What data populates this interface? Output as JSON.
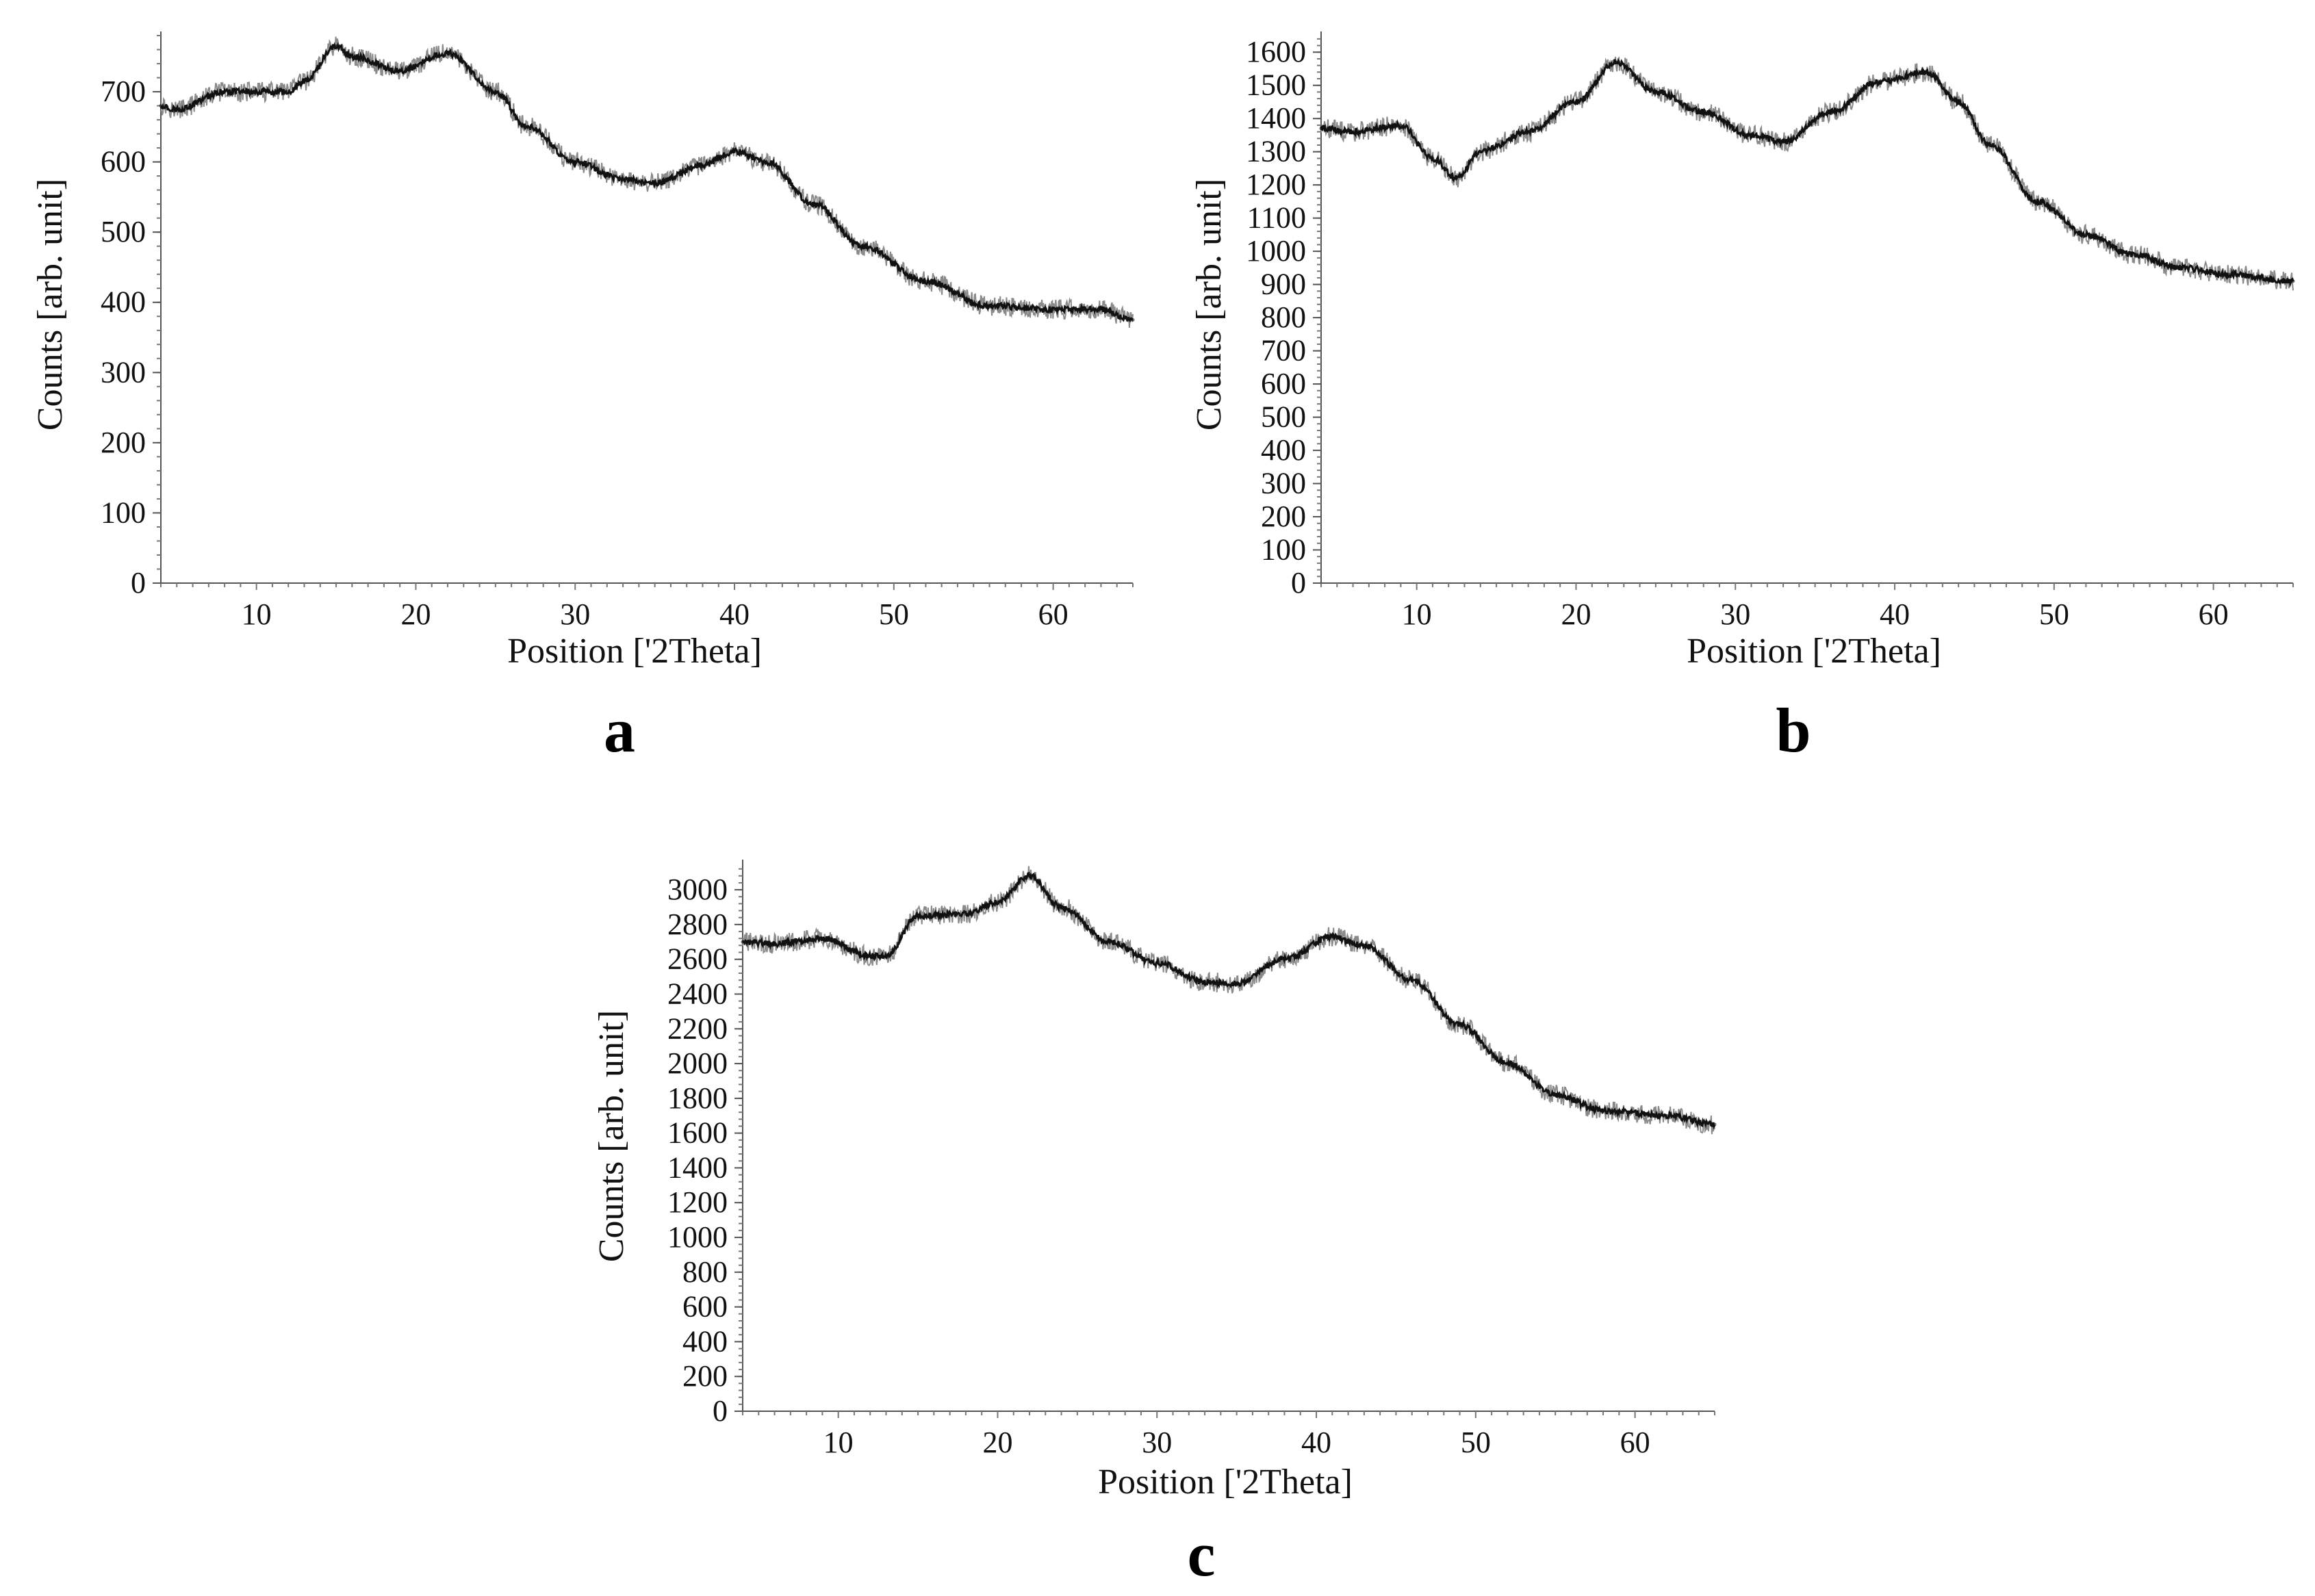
{
  "chart_data": [
    {
      "type": "line",
      "panel_label": "a",
      "title": "",
      "xlabel": "Position ['2Theta]",
      "ylabel": "Counts [arb. unit]",
      "xlim": [
        4,
        65
      ],
      "ylim": [
        0,
        780
      ],
      "xticks": [
        10,
        20,
        30,
        40,
        50,
        60
      ],
      "yticks": [
        0,
        100,
        200,
        300,
        400,
        500,
        600,
        700
      ],
      "grid": false,
      "series": [
        {
          "name": "a",
          "x": [
            4,
            5,
            8,
            12,
            13,
            15,
            16,
            19,
            22,
            25,
            27,
            30,
            33,
            35,
            38,
            40,
            42,
            45,
            48,
            52,
            56,
            60,
            63,
            65
          ],
          "y": [
            680,
            675,
            700,
            700,
            715,
            765,
            750,
            730,
            755,
            700,
            650,
            600,
            575,
            570,
            595,
            615,
            600,
            540,
            480,
            430,
            395,
            390,
            390,
            375
          ]
        }
      ]
    },
    {
      "type": "line",
      "panel_label": "b",
      "title": "",
      "xlabel": "Position ['2Theta]",
      "ylabel": "Counts [arb. unit]",
      "xlim": [
        4,
        65
      ],
      "ylim": [
        0,
        1650
      ],
      "xticks": [
        10,
        20,
        30,
        40,
        50,
        60
      ],
      "yticks": [
        0,
        100,
        200,
        300,
        400,
        500,
        600,
        700,
        800,
        900,
        1000,
        1100,
        1200,
        1300,
        1400,
        1500,
        1600
      ],
      "grid": false,
      "series": [
        {
          "name": "b",
          "x": [
            4,
            6,
            9,
            11,
            12.5,
            14,
            17,
            20,
            22.5,
            25,
            28,
            31,
            33,
            36,
            39,
            42,
            44,
            46,
            49,
            52,
            55,
            58,
            61,
            65
          ],
          "y": [
            1370,
            1360,
            1380,
            1280,
            1220,
            1300,
            1360,
            1450,
            1570,
            1480,
            1420,
            1350,
            1330,
            1420,
            1510,
            1540,
            1450,
            1320,
            1150,
            1050,
            990,
            950,
            930,
            910
          ]
        }
      ]
    },
    {
      "type": "line",
      "panel_label": "c",
      "title": "",
      "xlabel": "Position ['2Theta]",
      "ylabel": "Counts [arb. unit]",
      "xlim": [
        4,
        65
      ],
      "ylim": [
        0,
        3150
      ],
      "xticks": [
        10,
        20,
        30,
        40,
        50,
        60
      ],
      "yticks": [
        0,
        200,
        400,
        600,
        800,
        1000,
        1200,
        1400,
        1600,
        1800,
        2000,
        2200,
        2400,
        2600,
        2800,
        3000
      ],
      "grid": false,
      "series": [
        {
          "name": "c",
          "x": [
            4,
            6,
            9,
            12,
            13,
            15,
            18,
            20,
            22,
            24,
            27,
            30,
            33,
            35,
            38,
            41,
            43,
            46,
            49,
            52,
            55,
            58,
            62,
            65
          ],
          "y": [
            2700,
            2690,
            2720,
            2620,
            2620,
            2850,
            2860,
            2930,
            3080,
            2900,
            2700,
            2580,
            2470,
            2460,
            2600,
            2730,
            2680,
            2480,
            2220,
            2000,
            1820,
            1730,
            1700,
            1650
          ]
        }
      ]
    }
  ]
}
